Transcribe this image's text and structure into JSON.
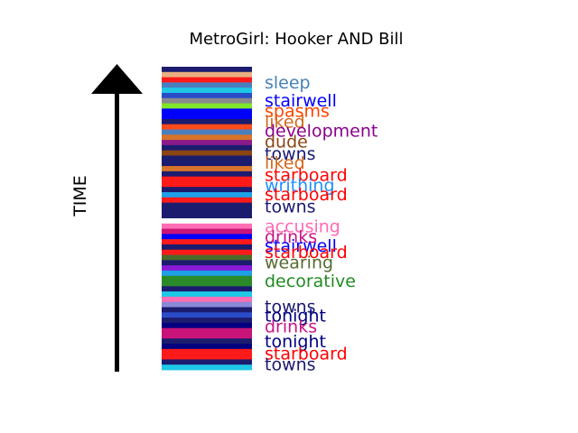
{
  "chart_data": {
    "type": "bar",
    "title": "MetroGirl: Hooker AND Bill",
    "ylabel": "TIME",
    "bands": [
      {
        "color": "#1c1c6e"
      },
      {
        "color": "#e8b080"
      },
      {
        "color": "#ff1a1a"
      },
      {
        "color": "#4a7fbf"
      },
      {
        "color": "#1ec8e6"
      },
      {
        "color": "#2a4cc8"
      },
      {
        "color": "#8a8a8a"
      },
      {
        "color": "#7fe62a"
      },
      {
        "color": "#0000ff"
      },
      {
        "color": "#0000ff"
      },
      {
        "color": "#1c1c6e"
      },
      {
        "color": "#ff4a1a"
      },
      {
        "color": "#4a7fbf"
      },
      {
        "color": "#d8742a"
      },
      {
        "color": "#8a1a8a"
      },
      {
        "color": "#1c1c6e"
      },
      {
        "color": "#8b4513"
      },
      {
        "color": "#1c1c6e"
      },
      {
        "color": "#1c1c6e"
      },
      {
        "color": "#d8742a"
      },
      {
        "color": "#1c1c6e"
      },
      {
        "color": "#ff1a1a"
      },
      {
        "color": "#ff1a1a"
      },
      {
        "color": "#1c1c6e"
      },
      {
        "color": "#1ea0e6"
      },
      {
        "color": "#ff1a1a"
      },
      {
        "color": "#1c1c6e"
      },
      {
        "color": "#1c1c6e"
      },
      {
        "color": "#1c1c6e"
      },
      {
        "color": "#ffffff"
      },
      {
        "color": "#ff6eb4"
      },
      {
        "color": "#c81478"
      },
      {
        "color": "#0000ff"
      },
      {
        "color": "#ff1a1a"
      },
      {
        "color": "#1c1c6e"
      },
      {
        "color": "#ff1a1a"
      },
      {
        "color": "#4a6a2a"
      },
      {
        "color": "#1c1c6e"
      },
      {
        "color": "#8a1ad8"
      },
      {
        "color": "#1ea0e6"
      },
      {
        "color": "#2a8a2a"
      },
      {
        "color": "#2a8a2a"
      },
      {
        "color": "#1c1c6e"
      },
      {
        "color": "#1ec8e6"
      },
      {
        "color": "#ff6eb4"
      },
      {
        "color": "#8a8ad8"
      },
      {
        "color": "#1c1c6e"
      },
      {
        "color": "#2a4cc8"
      },
      {
        "color": "#1c1c6e"
      },
      {
        "color": "#000080"
      },
      {
        "color": "#c81478"
      },
      {
        "color": "#c81478"
      },
      {
        "color": "#1c1c6e"
      },
      {
        "color": "#000080"
      },
      {
        "color": "#ff1a1a"
      },
      {
        "color": "#ff1a1a"
      },
      {
        "color": "#1c1c6e"
      },
      {
        "color": "#1ec8e6"
      }
    ],
    "labels": [
      {
        "text": "sleep",
        "color": "#4682b4",
        "pos": 0.05
      },
      {
        "text": "stairwell",
        "color": "#0000ff",
        "pos": 0.11
      },
      {
        "text": "spasms",
        "color": "#ff4500",
        "pos": 0.145
      },
      {
        "text": "liked",
        "color": "#d2691e",
        "pos": 0.18
      },
      {
        "text": "development",
        "color": "#8b008b",
        "pos": 0.21
      },
      {
        "text": "dude",
        "color": "#8b4513",
        "pos": 0.245
      },
      {
        "text": "towns",
        "color": "#191970",
        "pos": 0.285
      },
      {
        "text": "liked",
        "color": "#d2691e",
        "pos": 0.315
      },
      {
        "text": "starboard",
        "color": "#ff0000",
        "pos": 0.355
      },
      {
        "text": "writhing",
        "color": "#1e90ff",
        "pos": 0.39
      },
      {
        "text": "starboard",
        "color": "#ff0000",
        "pos": 0.42
      },
      {
        "text": "towns",
        "color": "#191970",
        "pos": 0.46
      },
      {
        "text": "accusing",
        "color": "#ff69b4",
        "pos": 0.525
      },
      {
        "text": "drinks",
        "color": "#c71585",
        "pos": 0.56
      },
      {
        "text": "stairwell",
        "color": "#0000ff",
        "pos": 0.59
      },
      {
        "text": "starboard",
        "color": "#ff0000",
        "pos": 0.61
      },
      {
        "text": "wearing",
        "color": "#556b2f",
        "pos": 0.645
      },
      {
        "text": "decorative",
        "color": "#228b22",
        "pos": 0.705
      },
      {
        "text": "towns",
        "color": "#191970",
        "pos": 0.79
      },
      {
        "text": "tonight",
        "color": "#000080",
        "pos": 0.82
      },
      {
        "text": "drinks",
        "color": "#c71585",
        "pos": 0.855
      },
      {
        "text": "tonight",
        "color": "#000080",
        "pos": 0.905
      },
      {
        "text": "starboard",
        "color": "#ff0000",
        "pos": 0.945
      },
      {
        "text": "towns",
        "color": "#191970",
        "pos": 0.98
      }
    ]
  }
}
